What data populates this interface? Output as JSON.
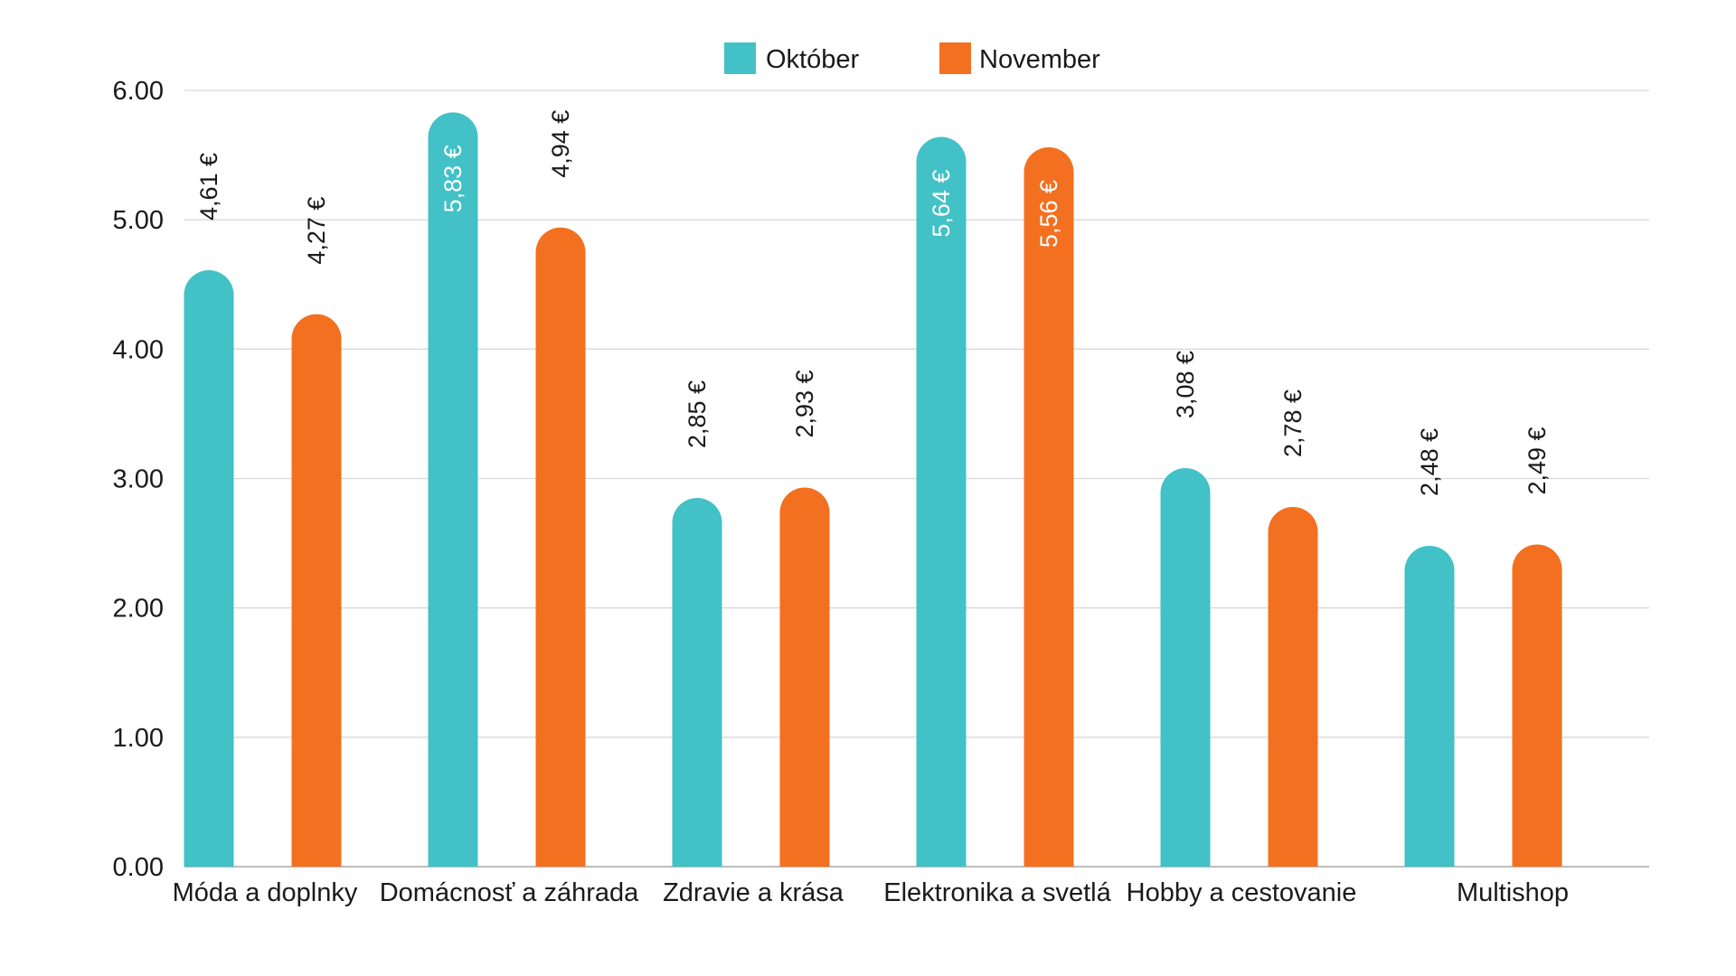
{
  "chart_data": {
    "type": "bar",
    "title": "",
    "xlabel": "",
    "ylabel": "",
    "ylim": [
      0,
      6
    ],
    "yticks": [
      "0.00",
      "1.00",
      "2.00",
      "3.00",
      "4.00",
      "5.00",
      "6.00"
    ],
    "grid": true,
    "legend_position": "top-center",
    "categories": [
      "Móda a doplnky",
      "Domácnosť a záhrada",
      "Zdravie a krása",
      "Elektronika a svetlá",
      "Hobby a cestovanie",
      "Multishop"
    ],
    "series": [
      {
        "name": "Október",
        "color": "#42c1c6",
        "values": [
          4.61,
          5.83,
          2.85,
          5.64,
          3.08,
          2.48
        ],
        "labels": [
          "4,61 €",
          "5,83 €",
          "2,85 €",
          "5,64 €",
          "3,08 €",
          "2,48 €"
        ]
      },
      {
        "name": "November",
        "color": "#f37021",
        "values": [
          4.27,
          4.94,
          2.93,
          5.56,
          2.78,
          2.49
        ],
        "labels": [
          "4,27 €",
          "4,94 €",
          "2,93 €",
          "5,56 €",
          "2,78 €",
          "2,49 €"
        ]
      }
    ]
  }
}
